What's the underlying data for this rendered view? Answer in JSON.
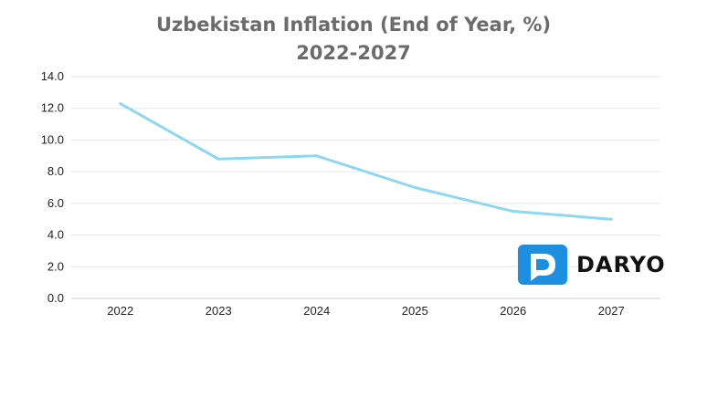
{
  "chart_data": {
    "type": "line",
    "title": "Uzbekistan Inflation (End of Year, %)",
    "subtitle": "2022-2027",
    "xlabel": "",
    "ylabel": "",
    "categories": [
      "2022",
      "2023",
      "2024",
      "2025",
      "2026",
      "2027"
    ],
    "series": [
      {
        "values": [
          12.3,
          8.8,
          9.0,
          7.0,
          5.5,
          5.0
        ]
      }
    ],
    "ylim": [
      0,
      14
    ],
    "yticks": [
      "0.0",
      "2.0",
      "4.0",
      "6.0",
      "8.0",
      "10.0",
      "12.0",
      "14.0"
    ],
    "grid": true,
    "legend": "none"
  },
  "colors": {
    "line": "#8ed8ee",
    "grid": "#e6e6e6",
    "axis": "#cfcfcf",
    "title": "#6b6b6b",
    "logo": "#1d8fe0"
  },
  "logo": {
    "text": "DARYO",
    "icon": "speech-bubble-d-icon"
  }
}
